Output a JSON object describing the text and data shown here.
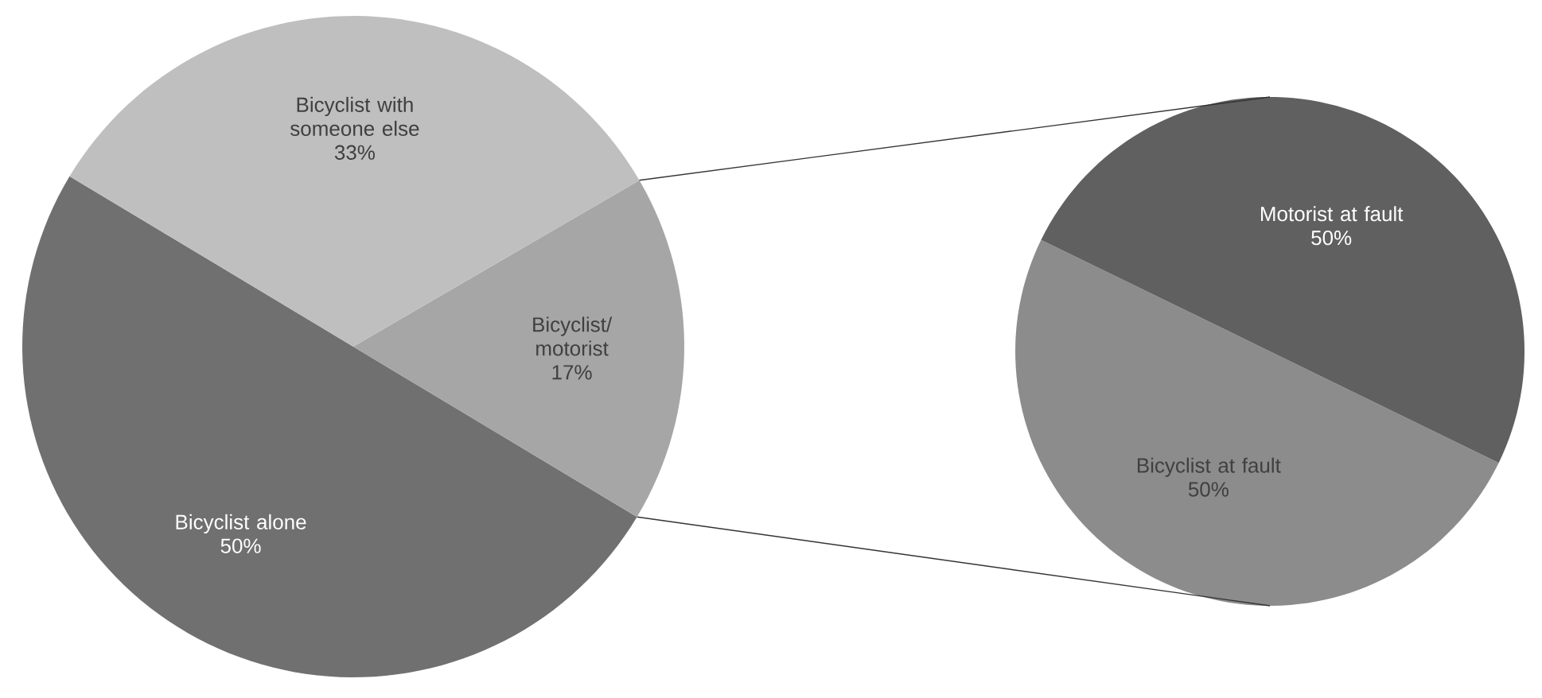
{
  "chart_data": [
    {
      "type": "pie",
      "categories": [
        "Bicyclist alone",
        "Bicyclist/ motorist",
        "Bicyclist with someone else"
      ],
      "values": [
        50,
        17,
        33
      ],
      "value_labels": [
        "50%",
        "17%",
        "33%"
      ],
      "colors": [
        "#707070",
        "#a6a6a6",
        "#bfbfbf"
      ]
    },
    {
      "type": "pie",
      "categories": [
        "Bicyclist at fault",
        "Motorist at fault"
      ],
      "values": [
        50,
        50
      ],
      "value_labels": [
        "50%",
        "50%"
      ],
      "colors": [
        "#8c8c8c",
        "#606060"
      ]
    }
  ]
}
